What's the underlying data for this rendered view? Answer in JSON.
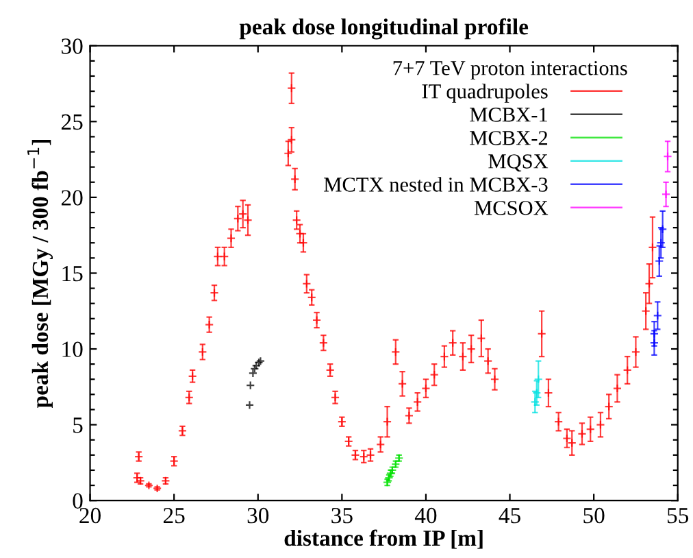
{
  "chart_data": {
    "type": "scatter",
    "title": "peak dose longitudinal profile",
    "xlabel": "distance from IP [m]",
    "ylabel": "peak dose [MGy / 300 fb$^{−1}$]",
    "legend_title": "7+7 TeV proton interactions",
    "legend": "top right",
    "marker": "cross",
    "xlim": [
      20,
      55
    ],
    "xticks": [
      20,
      25,
      30,
      35,
      40,
      45,
      50,
      55
    ],
    "ylim": [
      0,
      30
    ],
    "yticks": [
      0,
      {
        "value": 1,
        "label": null
      },
      {
        "value": 2,
        "label": null
      },
      {
        "value": 3,
        "label": null
      },
      {
        "value": 4,
        "label": null
      },
      5,
      {
        "value": 6,
        "label": null
      },
      {
        "value": 7,
        "label": null
      },
      {
        "value": 8,
        "label": null
      },
      {
        "value": 9,
        "label": null
      },
      10,
      {
        "value": 11,
        "label": null
      },
      {
        "value": 12,
        "label": null
      },
      {
        "value": 13,
        "label": null
      },
      {
        "value": 14,
        "label": null
      },
      15,
      {
        "value": 16,
        "label": null
      },
      {
        "value": 17,
        "label": null
      },
      {
        "value": 18,
        "label": null
      },
      {
        "value": 19,
        "label": null
      },
      20,
      {
        "value": 21,
        "label": null
      },
      {
        "value": 22,
        "label": null
      },
      {
        "value": 23,
        "label": null
      },
      {
        "value": 24,
        "label": null
      },
      25,
      {
        "value": 26,
        "label": null
      },
      {
        "value": 27,
        "label": null
      },
      {
        "value": 28,
        "label": null
      },
      {
        "value": 29,
        "label": null
      },
      30
    ],
    "series": [
      {
        "name": "IT quadrupoles",
        "color": "#ff0000",
        "x": [
          22.8,
          22.9,
          23.0,
          23.5,
          24.0,
          24.5,
          25.0,
          25.5,
          25.9,
          26.1,
          26.7,
          27.1,
          27.4,
          27.6,
          28.0,
          28.4,
          28.8,
          29.1,
          29.4,
          31.8,
          32.0,
          32.0,
          32.2,
          32.3,
          32.5,
          32.7,
          32.9,
          33.2,
          33.5,
          33.9,
          34.3,
          34.6,
          35.0,
          35.4,
          35.8,
          36.3,
          36.7,
          37.3,
          37.7,
          38.2,
          38.6,
          39.0,
          39.5,
          40.0,
          40.5,
          41.1,
          41.6,
          42.2,
          42.7,
          43.3,
          43.7,
          44.1,
          46.9,
          47.3,
          47.9,
          48.4,
          48.7,
          49.3,
          49.8,
          50.4,
          50.9,
          51.4,
          52.0,
          52.5,
          53.1,
          53.3,
          53.5
        ],
        "values": [
          1.5,
          2.9,
          1.3,
          1.0,
          0.8,
          1.3,
          2.6,
          4.6,
          6.8,
          8.2,
          9.8,
          11.6,
          13.7,
          16.1,
          16.1,
          17.3,
          18.6,
          18.9,
          18.5,
          22.9,
          27.2,
          23.8,
          21.2,
          18.5,
          17.6,
          17.0,
          14.3,
          13.4,
          11.9,
          10.4,
          8.6,
          6.8,
          5.2,
          3.9,
          3.0,
          2.9,
          3.0,
          3.7,
          5.2,
          9.8,
          7.7,
          5.6,
          6.5,
          7.4,
          8.3,
          9.5,
          10.4,
          9.5,
          10.0,
          10.7,
          9.2,
          8.0,
          11.0,
          7.1,
          5.2,
          4.1,
          3.8,
          4.4,
          4.7,
          5.0,
          6.2,
          7.4,
          8.6,
          9.8,
          12.5,
          14.3,
          16.7
        ],
        "errors": [
          0.3,
          0.3,
          0.2,
          0.1,
          0.1,
          0.2,
          0.3,
          0.3,
          0.4,
          0.4,
          0.5,
          0.5,
          0.5,
          0.6,
          0.6,
          0.6,
          0.8,
          0.9,
          1.0,
          0.8,
          1.0,
          0.8,
          0.7,
          0.6,
          0.6,
          0.6,
          0.6,
          0.5,
          0.5,
          0.5,
          0.4,
          0.4,
          0.3,
          0.3,
          0.3,
          0.4,
          0.4,
          0.5,
          1.0,
          0.8,
          0.8,
          0.5,
          0.6,
          0.6,
          0.7,
          0.7,
          0.8,
          0.9,
          0.9,
          1.2,
          0.8,
          0.7,
          1.5,
          0.9,
          0.6,
          0.6,
          0.8,
          0.7,
          0.8,
          0.8,
          0.8,
          0.9,
          0.9,
          1.0,
          1.2,
          1.3,
          2.0
        ]
      },
      {
        "name": "MCBX-1",
        "color": "#000000",
        "x": [
          29.5,
          29.55,
          29.7,
          29.8,
          29.9,
          30.05,
          30.15
        ],
        "values": [
          6.3,
          7.6,
          8.4,
          8.7,
          8.9,
          9.1,
          9.2
        ]
      },
      {
        "name": "MCBX-2",
        "color": "#00e000",
        "x": [
          37.7,
          37.8,
          37.9,
          38.0,
          38.2,
          38.4
        ],
        "values": [
          1.2,
          1.5,
          1.8,
          2.0,
          2.4,
          2.8
        ],
        "errors": [
          0.2,
          0.2,
          0.2,
          0.2,
          0.2,
          0.2
        ]
      },
      {
        "name": "MQSX",
        "color": "#00e0e0",
        "x": [
          46.5,
          46.6,
          46.7
        ],
        "values": [
          6.5,
          7.1,
          8.0
        ],
        "errors": [
          0.7,
          0.8,
          1.2
        ]
      },
      {
        "name": "MCTX nested in MCBX-3",
        "color": "#0000ff",
        "x": [
          53.6,
          53.6,
          53.8,
          53.9,
          54.0,
          54.1
        ],
        "values": [
          10.4,
          11.0,
          12.2,
          15.8,
          17.0,
          17.9
        ],
        "errors": [
          0.8,
          0.8,
          0.9,
          1.0,
          1.0,
          1.2
        ]
      },
      {
        "name": "MCSOX",
        "color": "#ff00ff",
        "x": [
          54.3,
          54.4
        ],
        "values": [
          20.2,
          22.7
        ],
        "errors": [
          0.8,
          1.0
        ]
      }
    ]
  }
}
